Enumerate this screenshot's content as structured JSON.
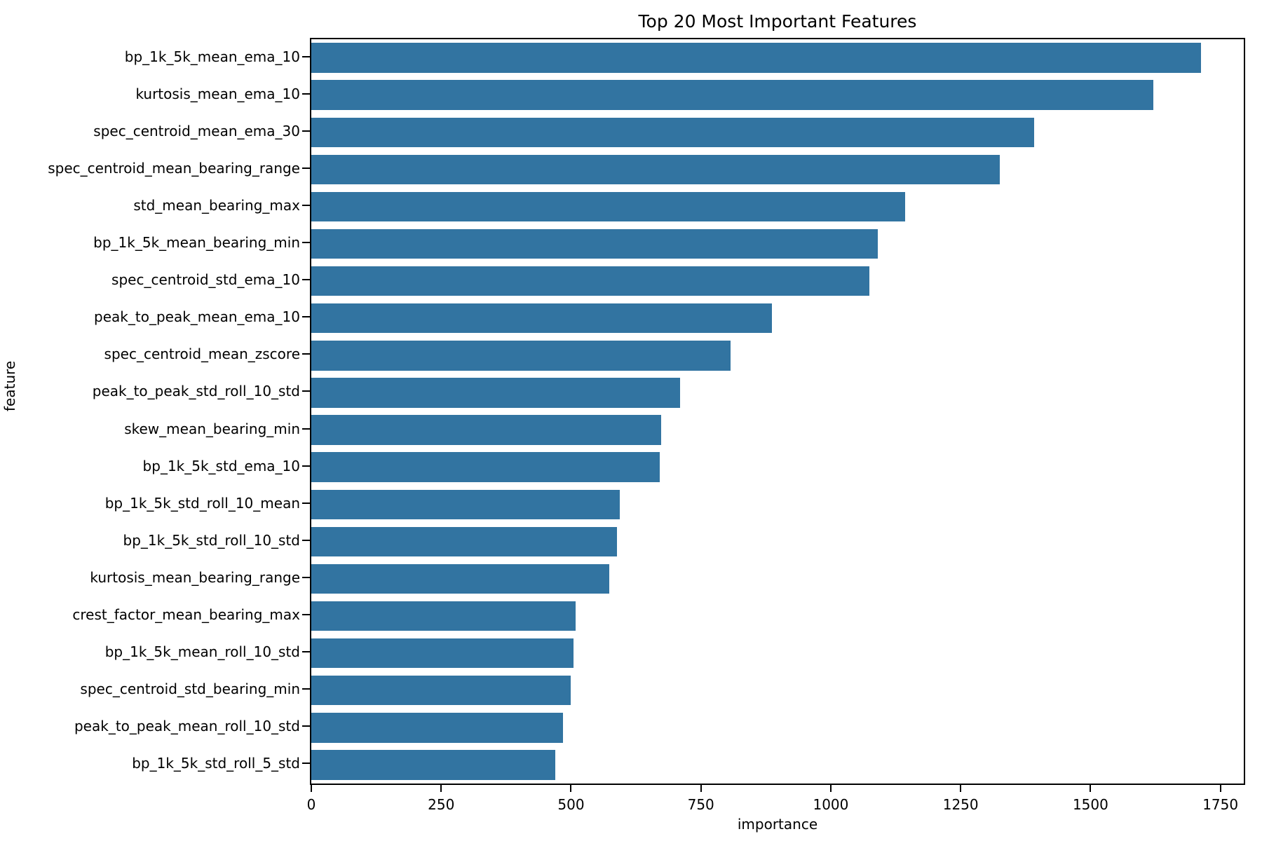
{
  "chart_data": {
    "type": "bar",
    "orientation": "horizontal",
    "title": "Top 20 Most Important Features",
    "xlabel": "importance",
    "ylabel": "feature",
    "xlim": [
      0,
      1795
    ],
    "x_ticks": [
      0,
      250,
      500,
      750,
      1000,
      1250,
      1500,
      1750
    ],
    "grid": false,
    "legend": null,
    "bar_color": "#3274a1",
    "categories": [
      "bp_1k_5k_mean_ema_10",
      "kurtosis_mean_ema_10",
      "spec_centroid_mean_ema_30",
      "spec_centroid_mean_bearing_range",
      "std_mean_bearing_max",
      "bp_1k_5k_mean_bearing_min",
      "spec_centroid_std_ema_10",
      "peak_to_peak_mean_ema_10",
      "spec_centroid_mean_zscore",
      "peak_to_peak_std_roll_10_std",
      "skew_mean_bearing_min",
      "bp_1k_5k_std_ema_10",
      "bp_1k_5k_std_roll_10_mean",
      "bp_1k_5k_std_roll_10_std",
      "kurtosis_mean_bearing_range",
      "crest_factor_mean_bearing_max",
      "bp_1k_5k_mean_roll_10_std",
      "spec_centroid_std_bearing_min",
      "peak_to_peak_mean_roll_10_std",
      "bp_1k_5k_std_roll_5_std"
    ],
    "values": [
      1712,
      1621,
      1391,
      1326,
      1143,
      1091,
      1074,
      887,
      807,
      710,
      674,
      671,
      594,
      589,
      573,
      509,
      505,
      500,
      485,
      470
    ]
  }
}
